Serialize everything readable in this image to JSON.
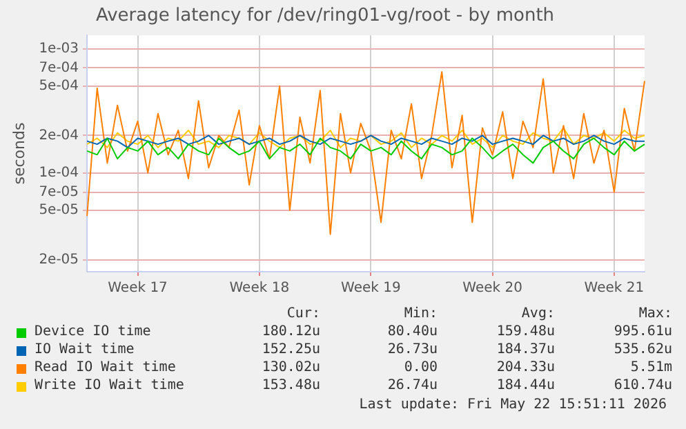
{
  "chart_data": {
    "type": "line",
    "title": "Average latency for /dev/ring01-vg/root - by month",
    "ylabel": "seconds",
    "log": "y",
    "grid": true,
    "legend": "bottom",
    "marker": "none",
    "line_style": "solid",
    "categories": [
      null,
      null,
      null,
      null,
      null,
      "Week 17",
      null,
      null,
      null,
      null,
      null,
      null,
      null,
      null,
      null,
      null,
      null,
      "Week 18",
      null,
      null,
      null,
      null,
      null,
      null,
      null,
      null,
      null,
      null,
      "Week 19",
      null,
      null,
      null,
      null,
      null,
      null,
      null,
      null,
      null,
      null,
      null,
      "Week 20",
      null,
      null,
      null,
      null,
      null,
      null,
      null,
      null,
      null,
      null,
      null,
      "Week 21",
      null,
      null,
      null
    ],
    "ylim": [
      1.6e-05,
      0.00128
    ],
    "yticks": [
      {
        "value": 2e-05,
        "label": "2e-05"
      },
      {
        "value": 5e-05,
        "label": "5e-05"
      },
      {
        "value": 7e-05,
        "label": "7e-05"
      },
      {
        "value": 0.0001,
        "label": "1e-04"
      },
      {
        "value": 0.0002,
        "label": "2e-04"
      },
      {
        "value": 0.0005,
        "label": "5e-04"
      },
      {
        "value": 0.0007,
        "label": "7e-04"
      },
      {
        "value": 0.001,
        "label": "1e-03"
      }
    ],
    "series": [
      {
        "name": "Device IO time",
        "color": "#00cc00",
        "values": [
          0.00015,
          0.00014,
          0.00019,
          0.00013,
          0.00016,
          0.00015,
          0.00018,
          0.00014,
          0.00016,
          0.00013,
          0.00017,
          0.00015,
          0.00014,
          0.00019,
          0.00016,
          0.00014,
          0.00015,
          0.00018,
          0.00013,
          0.00016,
          0.00015,
          0.00017,
          0.00014,
          0.00019,
          0.00016,
          0.00015,
          0.00013,
          0.00017,
          0.00015,
          0.00016,
          0.00014,
          0.00018,
          0.00015,
          0.00013,
          0.00017,
          0.00016,
          0.00014,
          0.00015,
          0.00019,
          0.00016,
          0.00013,
          0.00015,
          0.00017,
          0.00014,
          0.00012,
          0.00016,
          0.00018,
          0.00015,
          0.00013,
          0.00017,
          0.00019,
          0.00016,
          0.00014,
          0.00018,
          0.00015,
          0.00017
        ]
      },
      {
        "name": "IO Wait time",
        "color": "#0066b3",
        "values": [
          0.00018,
          0.00017,
          0.00019,
          0.00018,
          0.00016,
          0.00019,
          0.00018,
          0.00017,
          0.00018,
          0.00019,
          0.00017,
          0.00018,
          0.0002,
          0.00017,
          0.00018,
          0.00019,
          0.00017,
          0.00018,
          0.00019,
          0.00017,
          0.00018,
          0.0002,
          0.00018,
          0.00017,
          0.00019,
          0.00018,
          0.00017,
          0.00018,
          0.0002,
          0.00018,
          0.00017,
          0.00019,
          0.00018,
          0.00017,
          0.00019,
          0.00018,
          0.00017,
          0.00019,
          0.00018,
          0.0002,
          0.00017,
          0.00018,
          0.00019,
          0.00018,
          0.00017,
          0.0002,
          0.00018,
          0.00019,
          0.00017,
          0.00018,
          0.0002,
          0.00018,
          0.00017,
          0.00019,
          0.00018,
          0.00018
        ]
      },
      {
        "name": "Read IO Wait time",
        "color": "#ff8000",
        "values": [
          4.5e-05,
          0.00048,
          0.00012,
          0.00035,
          0.00015,
          0.00026,
          0.0001,
          0.0003,
          0.00014,
          0.00022,
          9e-05,
          0.00038,
          0.00011,
          0.0002,
          0.00016,
          0.00032,
          8e-05,
          0.00024,
          0.00013,
          0.0005,
          5e-05,
          0.00028,
          0.00012,
          0.00046,
          3.2e-05,
          0.0003,
          0.0001,
          0.00025,
          0.00015,
          4e-05,
          0.00022,
          0.00013,
          0.00036,
          9e-05,
          0.0002,
          0.00065,
          0.00011,
          0.00029,
          4e-05,
          0.00023,
          0.00014,
          0.00031,
          9e-05,
          0.00026,
          0.00016,
          0.00057,
          0.0001,
          0.00024,
          9e-05,
          0.0003,
          0.00012,
          0.00022,
          7e-05,
          0.00033,
          0.00015,
          0.00055
        ]
      },
      {
        "name": "Write IO Wait time",
        "color": "#ffcc00",
        "values": [
          0.00017,
          0.00019,
          0.00016,
          0.00021,
          0.00018,
          0.00017,
          0.0002,
          0.00016,
          0.00019,
          0.00018,
          0.00022,
          0.00017,
          0.00018,
          0.00016,
          0.0002,
          0.00019,
          0.00017,
          0.00021,
          0.00018,
          0.00016,
          0.00019,
          0.0002,
          0.00017,
          0.00018,
          0.00022,
          0.00016,
          0.00019,
          0.00018,
          0.0002,
          0.00017,
          0.00018,
          0.00021,
          0.00016,
          0.00019,
          0.00017,
          0.0002,
          0.00018,
          0.00022,
          0.00017,
          0.00019,
          0.00016,
          0.0002,
          0.00018,
          0.00017,
          0.00021,
          0.00019,
          0.00018,
          0.00023,
          0.00017,
          0.0002,
          0.00019,
          0.00021,
          0.00018,
          0.00022,
          0.00019,
          0.0002
        ]
      }
    ],
    "annotations": [
      "Cur:",
      "Min:",
      "Avg:",
      "Max:",
      "180.12u",
      "80.40u",
      "159.48u",
      "995.61u",
      "152.25u",
      "26.73u",
      "184.37u",
      "535.62u",
      "130.02u",
      "0.00",
      "204.33u",
      "5.51m",
      "153.48u",
      "26.74u",
      "184.44u",
      "610.74u",
      "Last update: Fri May 22 15:51:11 2026"
    ]
  }
}
